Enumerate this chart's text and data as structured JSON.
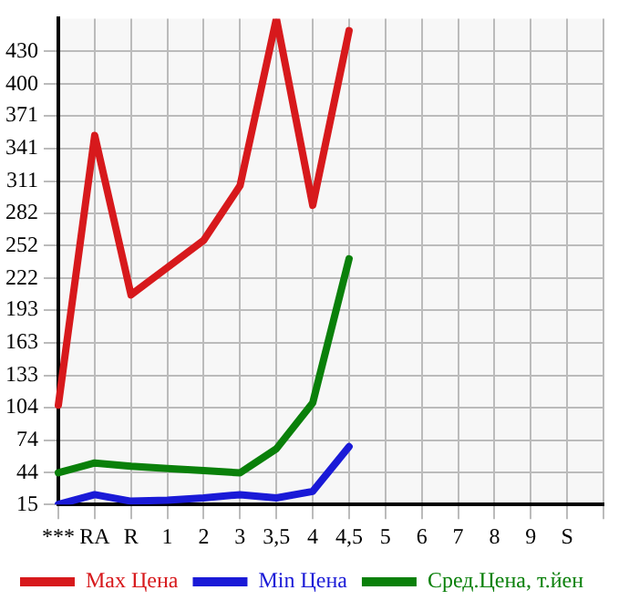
{
  "chart_data": {
    "type": "line",
    "categories": [
      "***",
      "RA",
      "R",
      "1",
      "2",
      "3",
      "3,5",
      "4",
      "4,5",
      "5",
      "6",
      "7",
      "8",
      "9",
      "S",
      null
    ],
    "series": [
      {
        "name": "Max Цена",
        "color": "#d7191c",
        "values": [
          106,
          353,
          207,
          232,
          257,
          307,
          460,
          289,
          449,
          null,
          null,
          null,
          null,
          null,
          null,
          null
        ]
      },
      {
        "name": "Min Цена",
        "color": "#1a1ad7",
        "values": [
          15,
          24,
          18,
          19,
          21,
          24,
          21,
          27,
          68,
          null,
          null,
          null,
          null,
          null,
          null,
          null
        ]
      },
      {
        "name": "Сред.Цена, т.йен",
        "color": "#0a800a",
        "values": [
          44,
          53,
          50,
          48,
          46,
          44,
          66,
          108,
          240,
          null,
          null,
          null,
          null,
          null,
          null,
          null
        ]
      }
    ],
    "ylim": [
      15,
      460
    ],
    "yticks": [
      15,
      44,
      74,
      104,
      133,
      163,
      193,
      222,
      252,
      282,
      311,
      341,
      371,
      400,
      430
    ],
    "grid": true,
    "legend": "bottom",
    "marker": "none",
    "line_style": "solid"
  }
}
